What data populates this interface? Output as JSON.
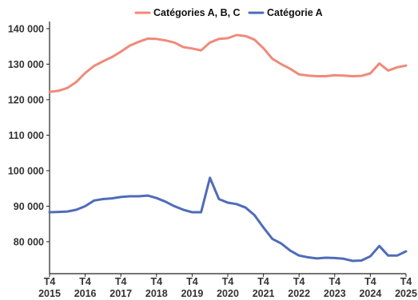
{
  "chart_data": {
    "type": "line",
    "x": [
      "2015-T4",
      "2016-T1",
      "2016-T2",
      "2016-T3",
      "2016-T4",
      "2017-T1",
      "2017-T2",
      "2017-T3",
      "2017-T4",
      "2018-T1",
      "2018-T2",
      "2018-T3",
      "2018-T4",
      "2019-T1",
      "2019-T2",
      "2019-T3",
      "2019-T4",
      "2020-T1",
      "2020-T2",
      "2020-T3",
      "2020-T4",
      "2021-T1",
      "2021-T2",
      "2021-T3",
      "2021-T4",
      "2022-T1",
      "2022-T2",
      "2022-T3",
      "2022-T4",
      "2023-T1",
      "2023-T2",
      "2023-T3",
      "2023-T4",
      "2024-T1",
      "2024-T2",
      "2024-T3",
      "2024-T4",
      "2025-T1",
      "2025-T2",
      "2025-T3",
      "2025-T4"
    ],
    "xtick_labels": [
      {
        "index": 0,
        "line1": "T4",
        "line2": "2015"
      },
      {
        "index": 4,
        "line1": "T4",
        "line2": "2016"
      },
      {
        "index": 8,
        "line1": "T4",
        "line2": "2017"
      },
      {
        "index": 12,
        "line1": "T4",
        "line2": "2018"
      },
      {
        "index": 16,
        "line1": "T4",
        "line2": "2019"
      },
      {
        "index": 20,
        "line1": "T4",
        "line2": "2020"
      },
      {
        "index": 24,
        "line1": "T4",
        "line2": "2021"
      },
      {
        "index": 28,
        "line1": "T4",
        "line2": "2022"
      },
      {
        "index": 32,
        "line1": "T4",
        "line2": "2023"
      },
      {
        "index": 36,
        "line1": "T4",
        "line2": "2024"
      },
      {
        "index": 40,
        "line1": "T4",
        "line2": "2025"
      }
    ],
    "ylim": [
      71000,
      142000
    ],
    "yticks": [
      80000,
      90000,
      100000,
      110000,
      120000,
      130000,
      140000
    ],
    "ytick_labels": [
      "80 000",
      "90 000",
      "100 000",
      "110 000",
      "120 000",
      "130 000",
      "140 000"
    ],
    "grid": false,
    "legend_position": "top",
    "series": [
      {
        "name": "Catégories A, B, C",
        "color": "#F08A7A",
        "values": [
          122200,
          122500,
          123300,
          125000,
          127500,
          129500,
          130800,
          132000,
          133500,
          135200,
          136300,
          137200,
          137100,
          136700,
          136100,
          134800,
          134400,
          133900,
          136100,
          137100,
          137300,
          138200,
          137900,
          136900,
          134500,
          131500,
          130000,
          128700,
          127100,
          126800,
          126600,
          126600,
          126900,
          126800,
          126600,
          126700,
          127400,
          130200,
          128200,
          129100,
          129600
        ]
      },
      {
        "name": "Catégorie A",
        "color": "#4E6CB8",
        "values": [
          88300,
          88400,
          88500,
          89000,
          90000,
          91600,
          92000,
          92200,
          92600,
          92800,
          92800,
          93000,
          92300,
          91300,
          90000,
          89000,
          88300,
          88300,
          98000,
          92000,
          91000,
          90600,
          89600,
          87500,
          84000,
          80800,
          79500,
          77500,
          76100,
          75600,
          75300,
          75500,
          75400,
          75200,
          74600,
          74700,
          75900,
          78800,
          76100,
          76100,
          77300
        ]
      }
    ]
  }
}
